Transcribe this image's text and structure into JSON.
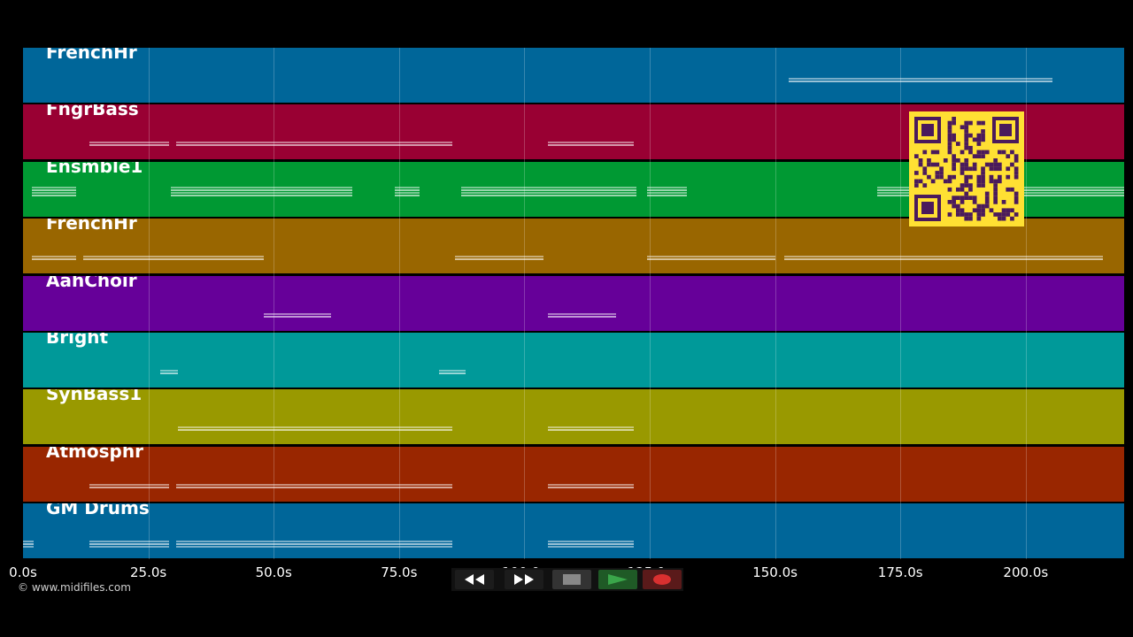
{
  "tracks": [
    {
      "name": "FrenchHr",
      "color": "#006699"
    },
    {
      "name": "FngrBass",
      "color": "#990033"
    },
    {
      "name": "Ensmble1",
      "color": "#009933"
    },
    {
      "name": "FrenchHr",
      "color": "#996600"
    },
    {
      "name": "AahChoir",
      "color": "#660099"
    },
    {
      "name": "Bright",
      "color": "#009999"
    },
    {
      "name": "SynBass1",
      "color": "#999900"
    },
    {
      "name": "Atmosphr",
      "color": "#992600"
    },
    {
      "name": "GM Drums",
      "color": "#006699"
    }
  ],
  "timeline": {
    "ticks": [
      "0.0s",
      "25.0s",
      "50.0s",
      "75.0s",
      "100.0s",
      "125.0s",
      "150.0s",
      "175.0s",
      "200.0s"
    ]
  },
  "copyright": "© www.midifiles.com",
  "transport": {
    "rewind_icon": "rewind-icon",
    "forward_icon": "fast-forward-icon",
    "stop_icon": "stop-icon",
    "play_icon": "play-icon",
    "record_icon": "record-icon",
    "colors": {
      "play": "#2e8b3a",
      "record": "#d93030",
      "stop": "#888888"
    }
  },
  "qr_code": {
    "color": "#ffe033",
    "dark": "#4a1a5c"
  }
}
